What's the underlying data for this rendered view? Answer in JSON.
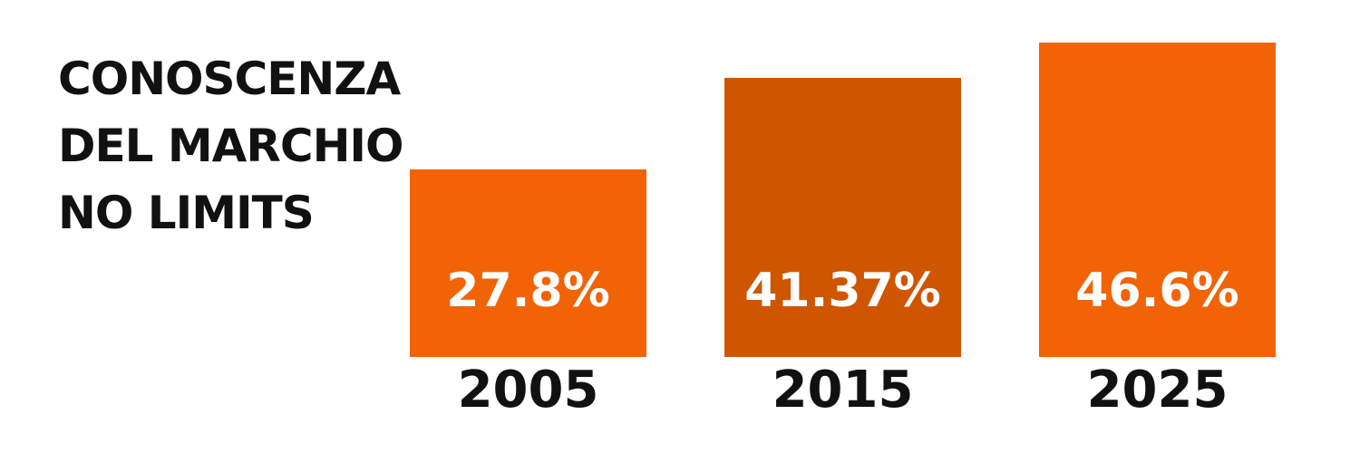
{
  "chart_data": {
    "type": "bar",
    "title": "CONOSCENZA DEL MARCHIO NO LIMITS",
    "categories": [
      "2005",
      "2015",
      "2025"
    ],
    "values": [
      27.8,
      41.37,
      46.6
    ],
    "value_labels": [
      "27.8%",
      "41.37%",
      "46.6%"
    ],
    "colors": [
      "#f26306",
      "#d05500",
      "#f26306"
    ]
  }
}
